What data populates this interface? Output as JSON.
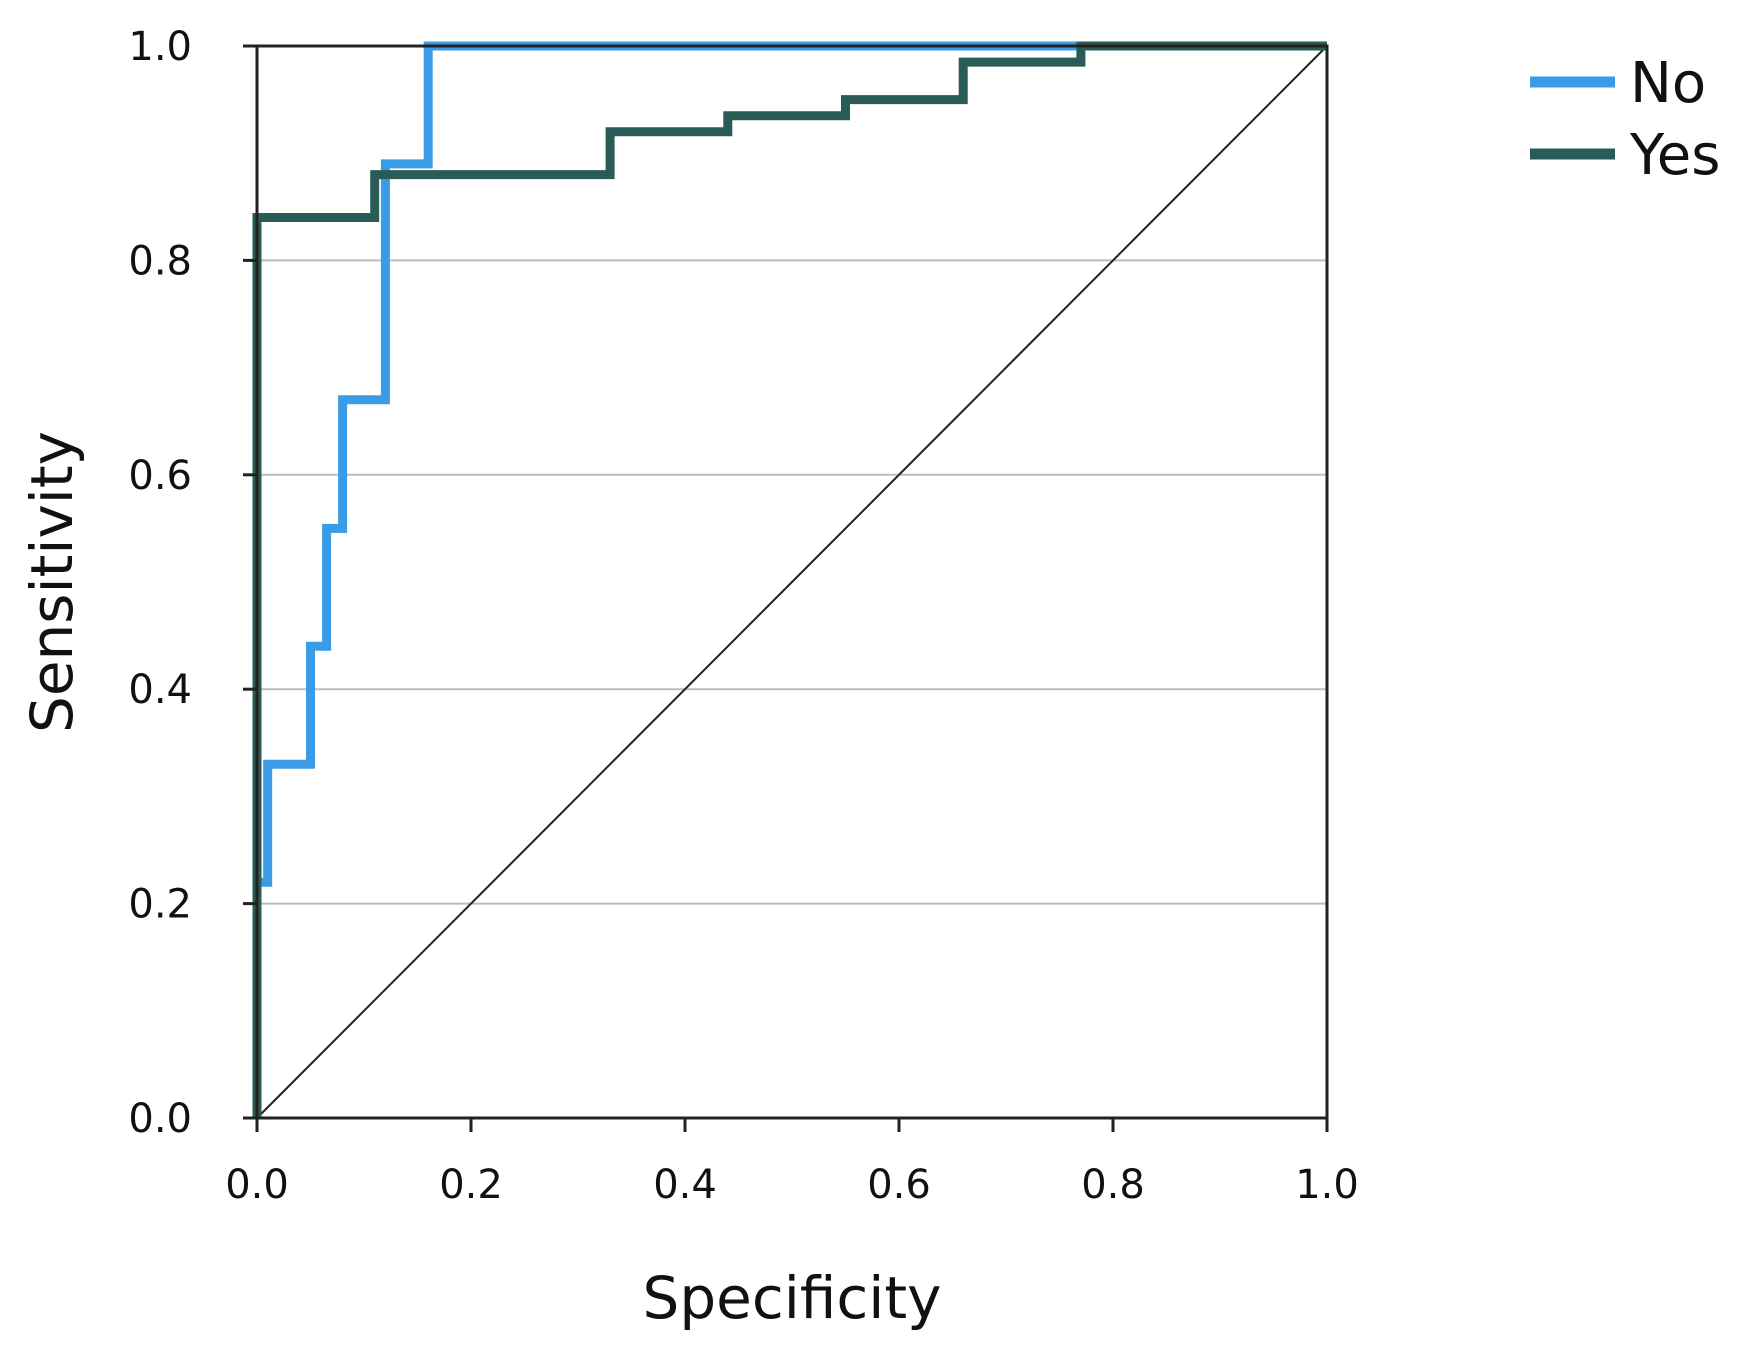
{
  "chart_data": {
    "type": "line",
    "title": "",
    "xlabel": "Specificity",
    "ylabel": "Sensitivity",
    "xlim": [
      0,
      1
    ],
    "ylim": [
      0,
      1
    ],
    "x_ticks": [
      "0.0",
      "0.2",
      "0.4",
      "0.6",
      "0.8",
      "1.0"
    ],
    "y_ticks": [
      "0.0",
      "0.2",
      "0.4",
      "0.6",
      "0.8",
      "1.0"
    ],
    "grid": "horizontal",
    "legend_position": "top-right",
    "reference_line": {
      "x": [
        0,
        1
      ],
      "y": [
        0,
        1
      ]
    },
    "series": [
      {
        "name": "No",
        "color": "#3a9be6",
        "x": [
          0.0,
          0.0,
          0.01,
          0.01,
          0.05,
          0.05,
          0.065,
          0.065,
          0.08,
          0.08,
          0.12,
          0.12,
          0.16,
          0.16,
          1.0
        ],
        "y": [
          0.0,
          0.22,
          0.22,
          0.33,
          0.33,
          0.44,
          0.44,
          0.55,
          0.55,
          0.67,
          0.67,
          0.89,
          0.89,
          1.0,
          1.0
        ]
      },
      {
        "name": "Yes",
        "color": "#2a5c57",
        "x": [
          0.0,
          0.0,
          0.11,
          0.11,
          0.33,
          0.33,
          0.44,
          0.44,
          0.55,
          0.55,
          0.66,
          0.66,
          0.77,
          0.77,
          1.0
        ],
        "y": [
          0.0,
          0.84,
          0.84,
          0.88,
          0.88,
          0.92,
          0.92,
          0.935,
          0.935,
          0.95,
          0.95,
          0.985,
          0.985,
          1.0,
          1.0
        ]
      }
    ]
  }
}
